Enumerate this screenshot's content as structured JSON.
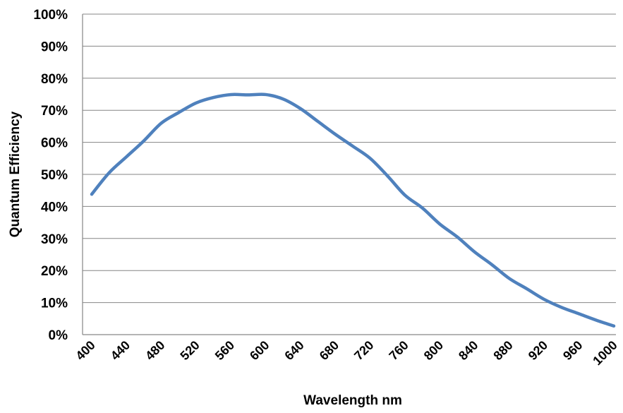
{
  "chart_data": {
    "type": "line",
    "title": "",
    "xlabel": "Wavelength nm",
    "ylabel": "Quantum Efficiency",
    "xlim": [
      400,
      1000
    ],
    "ylim": [
      0,
      100
    ],
    "x_ticks": [
      "400",
      "440",
      "480",
      "520",
      "560",
      "600",
      "640",
      "680",
      "720",
      "760",
      "800",
      "840",
      "880",
      "920",
      "960",
      "1000"
    ],
    "y_ticks": [
      "0%",
      "10%",
      "20%",
      "30%",
      "40%",
      "50%",
      "60%",
      "70%",
      "80%",
      "90%",
      "100%"
    ],
    "grid": "horizontal",
    "legend": "none",
    "series": [
      {
        "color": "#4F81BD",
        "x": [
          400,
          420,
          440,
          460,
          480,
          500,
          520,
          540,
          560,
          580,
          600,
          620,
          640,
          660,
          680,
          700,
          720,
          740,
          760,
          780,
          800,
          820,
          840,
          860,
          880,
          900,
          920,
          940,
          960,
          980,
          1000
        ],
        "y": [
          43.8,
          50.5,
          55.5,
          60.5,
          66,
          69.3,
          72.3,
          74,
          74.9,
          74.8,
          74.9,
          73.5,
          70.5,
          66.5,
          62.5,
          58.8,
          55,
          49.5,
          43.5,
          39.5,
          34.5,
          30.5,
          25.8,
          21.8,
          17.5,
          14.3,
          11,
          8.5,
          6.5,
          4.5,
          2.7
        ]
      }
    ]
  }
}
